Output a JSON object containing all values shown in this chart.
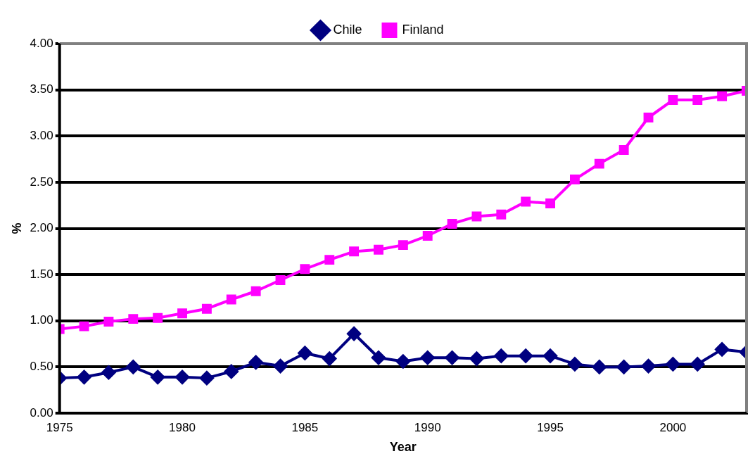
{
  "chart_data": {
    "type": "line",
    "xlabel": "Year",
    "ylabel": "%",
    "x": [
      1975,
      1976,
      1977,
      1978,
      1979,
      1980,
      1981,
      1982,
      1983,
      1984,
      1985,
      1986,
      1987,
      1988,
      1989,
      1990,
      1991,
      1992,
      1993,
      1994,
      1995,
      1996,
      1997,
      1998,
      1999,
      2000,
      2001,
      2002,
      2003
    ],
    "series": [
      {
        "name": "Chile",
        "color": "#000080",
        "marker": "diamond",
        "values": [
          0.38,
          0.39,
          0.44,
          0.5,
          0.39,
          0.39,
          0.38,
          0.45,
          0.55,
          0.51,
          0.65,
          0.59,
          0.86,
          0.6,
          0.56,
          0.6,
          0.6,
          0.59,
          0.62,
          0.62,
          0.62,
          0.53,
          0.5,
          0.5,
          0.51,
          0.53,
          0.53,
          0.69,
          0.66
        ]
      },
      {
        "name": "Finland",
        "color": "#ff00ff",
        "marker": "square",
        "values": [
          0.91,
          0.94,
          0.99,
          1.02,
          1.03,
          1.08,
          1.13,
          1.23,
          1.32,
          1.44,
          1.56,
          1.66,
          1.75,
          1.77,
          1.82,
          1.92,
          2.05,
          2.13,
          2.15,
          2.29,
          2.27,
          2.53,
          2.7,
          2.85,
          3.2,
          3.39,
          3.39,
          3.43,
          3.49
        ]
      }
    ],
    "xlim": [
      1975,
      2003
    ],
    "xticks": [
      1975,
      1980,
      1985,
      1990,
      1995,
      2000
    ],
    "ylim": [
      0,
      4
    ],
    "yticks": [
      {
        "value": 0,
        "label": "0.00"
      },
      {
        "value": 0.5,
        "label": "0.50"
      },
      {
        "value": 1,
        "label": "1.00"
      },
      {
        "value": 1.5,
        "label": "1.50"
      },
      {
        "value": 2,
        "label": "2.00"
      },
      {
        "value": 2.5,
        "label": "2.50"
      },
      {
        "value": 3,
        "label": "3.00"
      },
      {
        "value": 3.5,
        "label": "3.50"
      },
      {
        "value": 4,
        "label": "4.00"
      }
    ],
    "grid": "y",
    "legend": "top",
    "line_style": "solid"
  }
}
